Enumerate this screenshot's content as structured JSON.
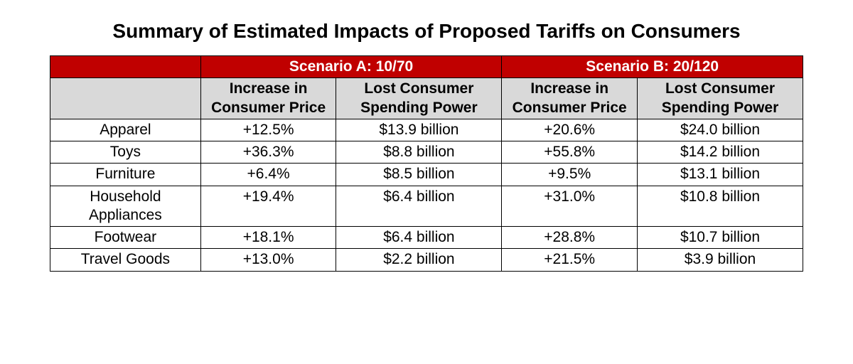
{
  "title": "Summary of Estimated Impacts of Proposed Tariffs on Consumers",
  "table": {
    "type": "table",
    "colors": {
      "header_bg": "#c00000",
      "header_text": "#ffffff",
      "subheader_bg": "#d9d9d9",
      "border": "#000000",
      "background": "#ffffff",
      "text": "#000000"
    },
    "fonts": {
      "title_size_pt": 21,
      "cell_size_pt": 16,
      "family": "Arial"
    },
    "scenarioA_label": "Scenario A: 10/70",
    "scenarioB_label": "Scenario B: 20/120",
    "sub_increase": "Increase in Consumer Price",
    "sub_lost": "Lost Consumer Spending Power",
    "rows": [
      {
        "label": "Apparel",
        "a_inc": "+12.5%",
        "a_lost": "$13.9 billion",
        "b_inc": "+20.6%",
        "b_lost": "$24.0 billion"
      },
      {
        "label": "Toys",
        "a_inc": "+36.3%",
        "a_lost": "$8.8 billion",
        "b_inc": "+55.8%",
        "b_lost": "$14.2 billion"
      },
      {
        "label": "Furniture",
        "a_inc": "+6.4%",
        "a_lost": "$8.5 billion",
        "b_inc": "+9.5%",
        "b_lost": "$13.1 billion"
      },
      {
        "label": "Household Appliances",
        "a_inc": "+19.4%",
        "a_lost": "$6.4 billion",
        "b_inc": "+31.0%",
        "b_lost": "$10.8 billion"
      },
      {
        "label": "Footwear",
        "a_inc": "+18.1%",
        "a_lost": "$6.4 billion",
        "b_inc": "+28.8%",
        "b_lost": "$10.7 billion"
      },
      {
        "label": "Travel Goods",
        "a_inc": "+13.0%",
        "a_lost": "$2.2 billion",
        "b_inc": "+21.5%",
        "b_lost": "$3.9 billion"
      }
    ]
  }
}
